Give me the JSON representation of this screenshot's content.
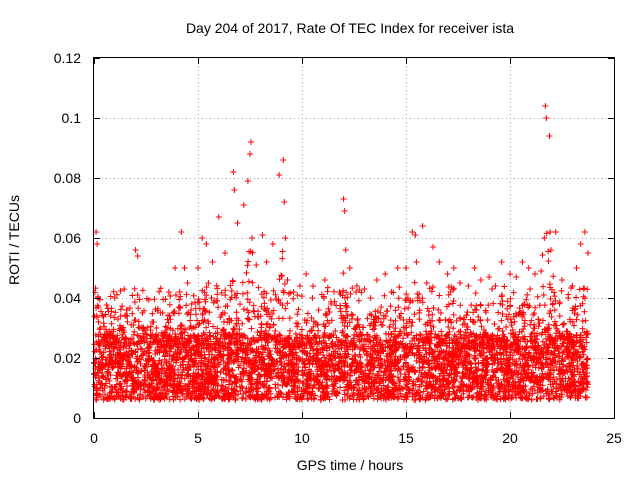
{
  "chart_data": {
    "type": "scatter",
    "title": "Day 204 of 2017, Rate Of TEC Index for receiver ista",
    "xlabel": "GPS time / hours",
    "ylabel": "ROTI / TECUs",
    "xlim": [
      0,
      25
    ],
    "ylim": [
      0,
      0.12
    ],
    "xticks": [
      0,
      5,
      10,
      15,
      20,
      25
    ],
    "xtick_labels": [
      "0",
      "5",
      "10",
      "15",
      "20",
      "25"
    ],
    "yticks": [
      0,
      0.02,
      0.04,
      0.06,
      0.08,
      0.1,
      0.12
    ],
    "ytick_labels": [
      "0",
      "0.02",
      "0.04",
      "0.06",
      "0.08",
      "0.1",
      "0.12"
    ],
    "grid": true,
    "marker": "+",
    "color": "#ff0000",
    "series": [
      {
        "name": "ROTI",
        "description_envelope": "dense band of values mostly between 0.005 and 0.03 TECU/s from 0 to 23.8 h, with isolated peaks",
        "x": [
          0.1,
          0.15,
          0.2,
          0.3,
          0.5,
          0.8,
          1.0,
          1.3,
          1.6,
          2.0,
          2.1,
          2.2,
          2.5,
          2.8,
          3.0,
          3.3,
          3.6,
          3.9,
          4.2,
          4.35,
          4.5,
          4.7,
          5.0,
          5.2,
          5.4,
          5.5,
          5.7,
          6.0,
          6.3,
          6.7,
          6.75,
          6.9,
          7.2,
          7.4,
          7.5,
          7.55,
          7.6,
          7.8,
          8.1,
          8.3,
          8.6,
          8.9,
          9.1,
          9.15,
          9.2,
          9.3,
          9.6,
          9.9,
          10.2,
          10.5,
          10.8,
          11.1,
          11.4,
          11.8,
          12.0,
          12.05,
          12.1,
          12.3,
          12.6,
          13.0,
          13.3,
          13.6,
          14.0,
          14.3,
          14.6,
          15.0,
          15.3,
          15.45,
          15.5,
          15.8,
          16.0,
          16.3,
          16.6,
          17.0,
          17.3,
          17.6,
          18.0,
          18.3,
          18.6,
          19.0,
          19.3,
          19.6,
          20.0,
          20.3,
          20.6,
          20.9,
          21.2,
          21.5,
          21.65,
          21.7,
          21.75,
          21.9,
          22.2,
          22.5,
          22.8,
          23.0,
          23.2,
          23.4,
          23.6,
          23.75
        ],
        "y": [
          0.062,
          0.058,
          0.04,
          0.03,
          0.028,
          0.034,
          0.04,
          0.03,
          0.034,
          0.056,
          0.054,
          0.03,
          0.028,
          0.032,
          0.03,
          0.035,
          0.042,
          0.05,
          0.062,
          0.05,
          0.045,
          0.038,
          0.05,
          0.06,
          0.058,
          0.045,
          0.052,
          0.067,
          0.055,
          0.082,
          0.076,
          0.065,
          0.071,
          0.079,
          0.088,
          0.092,
          0.06,
          0.051,
          0.061,
          0.052,
          0.058,
          0.081,
          0.086,
          0.072,
          0.06,
          0.046,
          0.042,
          0.044,
          0.048,
          0.04,
          0.036,
          0.046,
          0.038,
          0.042,
          0.073,
          0.069,
          0.056,
          0.05,
          0.042,
          0.043,
          0.04,
          0.046,
          0.048,
          0.042,
          0.05,
          0.05,
          0.062,
          0.061,
          0.052,
          0.064,
          0.045,
          0.057,
          0.052,
          0.048,
          0.05,
          0.045,
          0.044,
          0.05,
          0.046,
          0.047,
          0.044,
          0.052,
          0.048,
          0.047,
          0.052,
          0.05,
          0.048,
          0.049,
          0.06,
          0.104,
          0.1,
          0.094,
          0.062,
          0.046,
          0.04,
          0.044,
          0.05,
          0.058,
          0.062,
          0.055
        ]
      }
    ]
  }
}
